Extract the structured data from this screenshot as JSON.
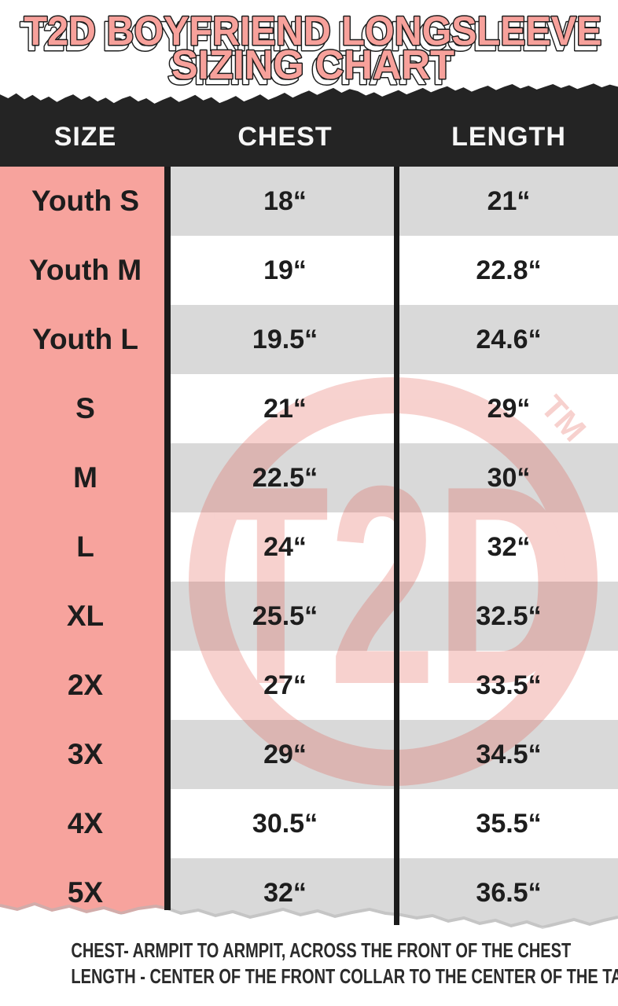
{
  "title": {
    "line1": "T2D BOYFRIEND LONGSLEEVE",
    "line2": "SIZING CHART"
  },
  "chart_data": {
    "type": "table",
    "title": "T2D BOYFRIEND LONGSLEEVE SIZING CHART",
    "columns": [
      "SIZE",
      "CHEST",
      "LENGTH"
    ],
    "rows": [
      [
        "Youth S",
        "18“",
        "21“"
      ],
      [
        "Youth M",
        "19“",
        "22.8“"
      ],
      [
        "Youth L",
        "19.5“",
        "24.6“"
      ],
      [
        "S",
        "21“",
        "29“"
      ],
      [
        "M",
        "22.5“",
        "30“"
      ],
      [
        "L",
        "24“",
        "32“"
      ],
      [
        "XL",
        "25.5“",
        "32.5“"
      ],
      [
        "2X",
        "27“",
        "33.5“"
      ],
      [
        "3X",
        "29“",
        "34.5“"
      ],
      [
        "4X",
        "30.5“",
        "35.5“"
      ],
      [
        "5X",
        "32“",
        "36.5“"
      ]
    ],
    "layout": {
      "striped_rows": "odd rows gray",
      "size_column_color": "pink"
    }
  },
  "watermark": {
    "monogram": "T2D",
    "tm": "TM"
  },
  "footer": {
    "line1": "CHEST- ARMPIT TO ARMPIT, ACROSS THE FRONT OF THE CHEST",
    "line2": "LENGTH - CENTER OF THE FRONT COLLAR TO THE CENTER OF THE TAIL"
  },
  "colors": {
    "accent_pink": "#F7A19B",
    "size_column_pink": "#F7A39D",
    "header_black": "#242424",
    "stripe_gray": "#D9D9D9",
    "watermark_red": "#E2574D",
    "text_dark": "#1d1d1d"
  }
}
